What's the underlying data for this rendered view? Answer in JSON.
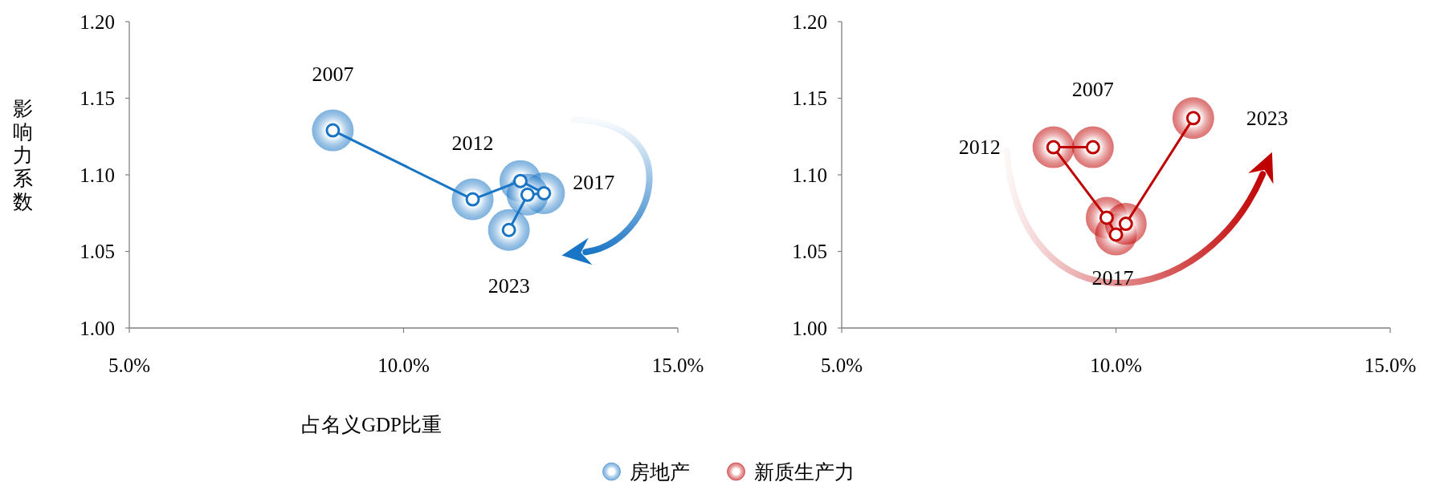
{
  "chart_data": [
    {
      "type": "line",
      "xlabel": "占名义GDP比重",
      "ylabel": "影响力系数",
      "xlim": [
        5,
        15
      ],
      "ylim": [
        1,
        1.2
      ],
      "xticks": [
        {
          "value": 5,
          "label": "5.0%"
        },
        {
          "value": 10,
          "label": "10.0%"
        },
        {
          "value": 15,
          "label": "15.0%"
        }
      ],
      "yticks": [
        {
          "value": 1,
          "label": "1.00"
        },
        {
          "value": 1.05,
          "label": "1.05"
        },
        {
          "value": 1.1,
          "label": "1.10"
        },
        {
          "value": 1.15,
          "label": "1.15"
        },
        {
          "value": 1.2,
          "label": "1.20"
        }
      ],
      "marker": "circle",
      "legend": "bottom",
      "grid": false,
      "series": [
        {
          "name": "房地产",
          "color": "#1874c4",
          "x": [
            8.71,
            11.26,
            12.13,
            12.56,
            12.26,
            11.92
          ],
          "values": [
            1.129,
            1.084,
            1.096,
            1.088,
            1.087,
            1.064
          ]
        }
      ],
      "annotations": [
        {
          "text": "2007",
          "x": 8.71,
          "y": 1.129
        },
        {
          "text": "2012",
          "x": 11.26,
          "y": 1.084
        },
        {
          "text": "2017",
          "x": 12.56,
          "y": 1.088
        },
        {
          "text": "2023",
          "x": 11.92,
          "y": 1.064
        }
      ]
    },
    {
      "type": "line",
      "xlim": [
        5,
        15
      ],
      "ylim": [
        1,
        1.2
      ],
      "xticks": [
        {
          "value": 5,
          "label": "5.0%"
        },
        {
          "value": 10,
          "label": "10.0%"
        },
        {
          "value": 15,
          "label": "15.0%"
        }
      ],
      "yticks": [
        {
          "value": 1,
          "label": "1.00"
        },
        {
          "value": 1.05,
          "label": "1.05"
        },
        {
          "value": 1.1,
          "label": "1.10"
        },
        {
          "value": 1.15,
          "label": "1.15"
        },
        {
          "value": 1.2,
          "label": "1.20"
        }
      ],
      "marker": "circle",
      "legend": "bottom",
      "grid": false,
      "series": [
        {
          "name": "新质生产力",
          "color": "#c00000",
          "x": [
            9.58,
            8.86,
            9.83,
            10.0,
            10.18,
            11.41
          ],
          "values": [
            1.118,
            1.118,
            1.072,
            1.061,
            1.068,
            1.137
          ]
        }
      ],
      "annotations": [
        {
          "text": "2007",
          "x": 9.58,
          "y": 1.118
        },
        {
          "text": "2012",
          "x": 8.86,
          "y": 1.118
        },
        {
          "text": "2017",
          "x": 10.0,
          "y": 1.061
        },
        {
          "text": "2023",
          "x": 11.41,
          "y": 1.137
        }
      ]
    }
  ]
}
